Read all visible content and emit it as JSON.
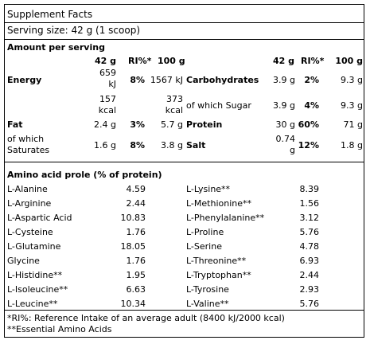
{
  "title": "Supplement Facts",
  "serving_size": "Serving size: 42 g (1 scoop)",
  "amount_header": "Amount per serving",
  "columns": {
    "per_serving": "42 g",
    "ri": "RI%*",
    "per_100": "100 g"
  },
  "left_rows": [
    {
      "name": "Energy",
      "serv_a": "659",
      "serv_b": "kJ",
      "ri": "8%",
      "per100": "1567 kJ"
    },
    {
      "name": "",
      "serv_a": "157",
      "serv_b": "kcal",
      "ri": "",
      "per100": ""
    },
    {
      "name": "Fat",
      "serv": "2.4 g",
      "ri": "3%",
      "per100": "5.7 g"
    },
    {
      "name_a": "of which",
      "name_b": "Saturates",
      "serv": "1.6 g",
      "ri": "8%",
      "per100": "3.8 g"
    }
  ],
  "right_rows": [
    {
      "name": "Carbohydrates",
      "serv": "3.9 g",
      "ri": "2%",
      "per100": "9.3 g"
    },
    {
      "per100_a": "373",
      "per100_b": "kcal",
      "name": "of which Sugar",
      "serv": "3.9 g",
      "ri": "4%",
      "per100": "9.3 g"
    },
    {
      "name": "Protein",
      "serv": "30 g",
      "ri": "60%",
      "per100": "71 g"
    },
    {
      "name": "Salt",
      "serv_a": "0.74",
      "serv_b": "g",
      "ri": "12%",
      "per100": "1.8 g"
    }
  ],
  "amino_header": "Amino acid prole (% of protein)",
  "amino_left": [
    {
      "name": "L-Alanine",
      "value": "4.59"
    },
    {
      "name": "L-Arginine",
      "value": "2.44"
    },
    {
      "name": "L-Aspartic Acid",
      "value": "10.83"
    },
    {
      "name": "L-Cysteine",
      "value": "1.76"
    },
    {
      "name": "L-Glutamine",
      "value": "18.05"
    },
    {
      "name": "Glycine",
      "value": "1.76"
    },
    {
      "name": "L-Histidine**",
      "value": "1.95"
    },
    {
      "name": "L-Isoleucine**",
      "value": "6.63"
    },
    {
      "name": "L-Leucine**",
      "value": "10.34"
    }
  ],
  "amino_right": [
    {
      "name": "L-Lysine**",
      "value": "8.39"
    },
    {
      "name": "L-Methionine**",
      "value": "1.56"
    },
    {
      "name": "L-Phenylalanine**",
      "value": "3.12"
    },
    {
      "name": "L-Proline",
      "value": "5.76"
    },
    {
      "name": "L-Serine",
      "value": "4.78"
    },
    {
      "name": "L-Threonine**",
      "value": "6.93"
    },
    {
      "name": "L-Tryptophan**",
      "value": "2.44"
    },
    {
      "name": "L-Tyrosine",
      "value": "2.93"
    },
    {
      "name": "L-Valine**",
      "value": "5.76"
    }
  ],
  "footnotes": [
    "*RI%: Reference Intake of an average adult (8400 kJ/2000 kcal)",
    "**Essential Amino Acids"
  ]
}
